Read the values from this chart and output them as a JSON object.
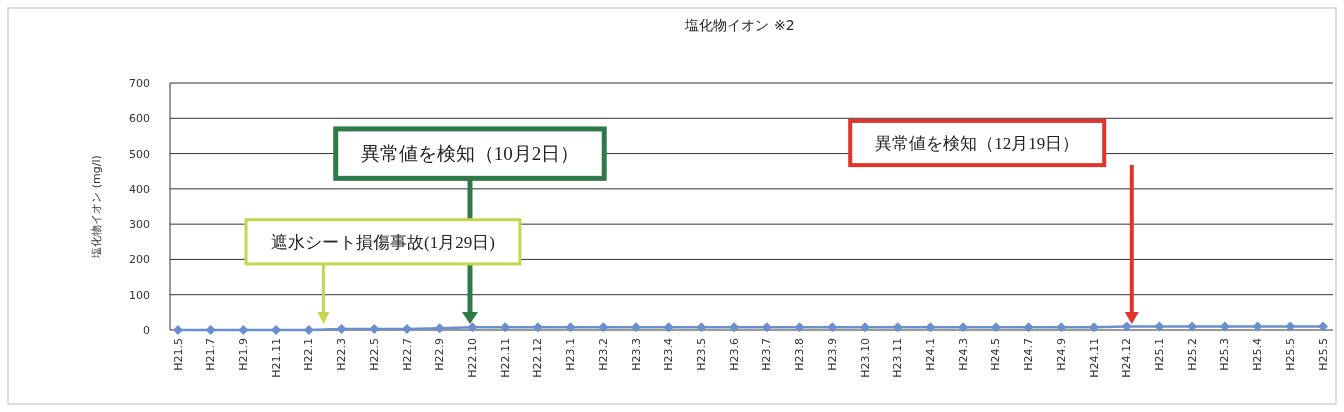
{
  "chart_data": {
    "type": "line",
    "title": "塩化物イオン ※2",
    "ylabel": "塩化物イオン (mg/l)",
    "categories": [
      "H21.5",
      "H21.7",
      "H21.9",
      "H21.11",
      "H22.1",
      "H22.3",
      "H22.5",
      "H22.7",
      "H22.9",
      "H22.10",
      "H22.11",
      "H22.12",
      "H23.1",
      "H23.2",
      "H23.3",
      "H23.4",
      "H23.5",
      "H23.6",
      "H23.7",
      "H23.8",
      "H23.9",
      "H23.10",
      "H23.11",
      "H24.1",
      "H24.3",
      "H24.5",
      "H24.7",
      "H24.9",
      "H24.11",
      "H24.12",
      "H25.1",
      "H25.2",
      "H25.3",
      "H25.4",
      "H25.5",
      "H25.5"
    ],
    "series": [
      {
        "color": "#6a8fcf",
        "values": [
          0,
          0,
          0,
          0,
          0,
          3,
          3,
          3,
          5,
          8,
          8,
          8,
          8,
          8,
          8,
          8,
          8,
          8,
          8,
          8,
          8,
          8,
          8,
          8,
          8,
          8,
          8,
          8,
          8,
          10,
          10,
          10,
          10,
          10,
          10,
          10
        ]
      }
    ],
    "ylim": [
      0,
      700
    ],
    "yticks": [
      0,
      100,
      200,
      300,
      400,
      500,
      600,
      700
    ],
    "grid": "y",
    "marker": "diamond",
    "line_style": "solid",
    "annotations": [
      "遮水シート損傷事故(1月29日)",
      "異常値を検知（10月2日）",
      "異常値を検知（12月19日）"
    ]
  }
}
